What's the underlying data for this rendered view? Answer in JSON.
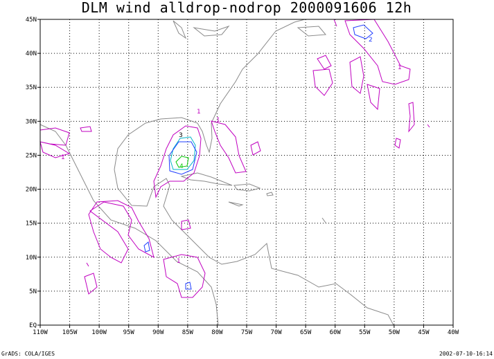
{
  "title": "DLM wind alldrop-nodrop 2000091606 12h",
  "x_labels": [
    "110W",
    "105W",
    "100W",
    "95W",
    "90W",
    "85W",
    "80W",
    "75W",
    "70W",
    "65W",
    "60W",
    "55W",
    "50W",
    "45W",
    "40W"
  ],
  "y_labels": [
    "EQ",
    "5N",
    "10N",
    "15N",
    "20N",
    "25N",
    "30N",
    "35N",
    "40N",
    "45N"
  ],
  "contour_labels": [
    "1",
    "2",
    "3",
    "4"
  ],
  "footer": {
    "left": "GrADS: COLA/IGES",
    "right": "2002-07-10-16:14"
  }
}
